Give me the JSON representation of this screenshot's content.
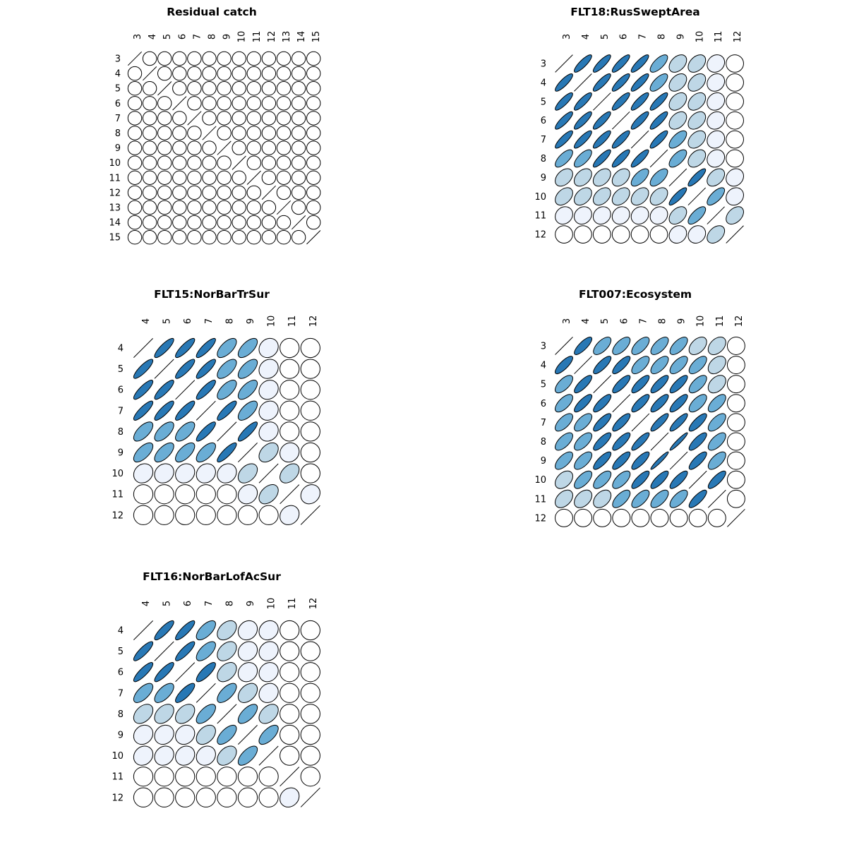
{
  "chart_data": [
    {
      "type": "heatmap",
      "subtype": "correlation-ellipse-matrix",
      "title": "Residual catch",
      "labels": [
        "3",
        "4",
        "5",
        "6",
        "7",
        "8",
        "9",
        "10",
        "11",
        "12",
        "13",
        "14",
        "15"
      ],
      "matrix": [
        [
          1,
          0,
          0,
          0,
          0,
          0,
          0,
          0,
          0,
          0,
          0,
          0,
          0
        ],
        [
          0,
          1,
          0,
          0,
          0,
          0,
          0,
          0,
          0,
          0,
          0,
          0,
          0
        ],
        [
          0,
          0,
          1,
          0,
          0,
          0,
          0,
          0,
          0,
          0,
          0,
          0,
          0
        ],
        [
          0,
          0,
          0,
          1,
          0,
          0,
          0,
          0,
          0,
          0,
          0,
          0,
          0
        ],
        [
          0,
          0,
          0,
          0,
          1,
          0,
          0,
          0,
          0,
          0,
          0,
          0,
          0
        ],
        [
          0,
          0,
          0,
          0,
          0,
          1,
          0,
          0,
          0,
          0,
          0,
          0,
          0
        ],
        [
          0,
          0,
          0,
          0,
          0,
          0,
          1,
          0,
          0,
          0,
          0,
          0,
          0
        ],
        [
          0,
          0,
          0,
          0,
          0,
          0,
          0,
          1,
          0,
          0,
          0,
          0,
          0
        ],
        [
          0,
          0,
          0,
          0,
          0,
          0,
          0,
          0,
          1,
          0,
          0,
          0,
          0
        ],
        [
          0,
          0,
          0,
          0,
          0,
          0,
          0,
          0,
          0,
          1,
          0,
          0,
          0
        ],
        [
          0,
          0,
          0,
          0,
          0,
          0,
          0,
          0,
          0,
          0,
          1,
          0,
          0
        ],
        [
          0,
          0,
          0,
          0,
          0,
          0,
          0,
          0,
          0,
          0,
          0,
          1,
          0
        ],
        [
          0,
          0,
          0,
          0,
          0,
          0,
          0,
          0,
          0,
          0,
          0,
          0,
          1
        ]
      ]
    },
    {
      "type": "heatmap",
      "subtype": "correlation-ellipse-matrix",
      "title": "FLT18:RusSweptArea",
      "labels": [
        "3",
        "4",
        "5",
        "6",
        "7",
        "8",
        "9",
        "10",
        "11",
        "12"
      ],
      "matrix": [
        [
          1,
          0.85,
          0.85,
          0.85,
          0.85,
          0.7,
          0.4,
          0.4,
          0.15,
          0
        ],
        [
          0.85,
          1,
          0.85,
          0.85,
          0.85,
          0.7,
          0.4,
          0.4,
          0.15,
          0
        ],
        [
          0.85,
          0.85,
          1,
          0.85,
          0.85,
          0.85,
          0.4,
          0.4,
          0.15,
          0
        ],
        [
          0.85,
          0.85,
          0.85,
          1,
          0.85,
          0.85,
          0.4,
          0.4,
          0.15,
          0
        ],
        [
          0.85,
          0.85,
          0.85,
          0.85,
          1,
          0.85,
          0.65,
          0.4,
          0.15,
          0
        ],
        [
          0.7,
          0.7,
          0.85,
          0.85,
          0.85,
          1,
          0.65,
          0.4,
          0.15,
          0
        ],
        [
          0.4,
          0.4,
          0.4,
          0.4,
          0.65,
          0.65,
          1,
          0.85,
          0.4,
          0.15
        ],
        [
          0.4,
          0.4,
          0.4,
          0.4,
          0.4,
          0.4,
          0.85,
          1,
          0.7,
          0.15
        ],
        [
          0.15,
          0.15,
          0.15,
          0.15,
          0.15,
          0.15,
          0.4,
          0.7,
          1,
          0.4
        ],
        [
          0,
          0,
          0,
          0,
          0,
          0,
          0.15,
          0.15,
          0.4,
          1
        ]
      ]
    },
    {
      "type": "heatmap",
      "subtype": "correlation-ellipse-matrix",
      "title": "FLT15:NorBarTrSur",
      "labels": [
        "4",
        "5",
        "6",
        "7",
        "8",
        "9",
        "10",
        "11",
        "12"
      ],
      "matrix": [
        [
          1,
          0.85,
          0.85,
          0.85,
          0.65,
          0.65,
          0.15,
          0,
          0
        ],
        [
          0.85,
          1,
          0.85,
          0.85,
          0.65,
          0.65,
          0.15,
          0,
          0
        ],
        [
          0.85,
          0.85,
          1,
          0.85,
          0.65,
          0.65,
          0.15,
          0,
          0
        ],
        [
          0.85,
          0.85,
          0.85,
          1,
          0.85,
          0.65,
          0.15,
          0,
          0
        ],
        [
          0.65,
          0.65,
          0.65,
          0.85,
          1,
          0.85,
          0.15,
          0,
          0
        ],
        [
          0.65,
          0.65,
          0.65,
          0.65,
          0.85,
          1,
          0.4,
          0.1,
          0
        ],
        [
          0.15,
          0.15,
          0.15,
          0.15,
          0.15,
          0.4,
          1,
          0.4,
          0
        ],
        [
          0,
          0,
          0,
          0,
          0,
          0.15,
          0.4,
          1,
          0.15
        ],
        [
          0,
          0,
          0,
          0,
          0,
          0,
          0,
          0.15,
          1
        ]
      ]
    },
    {
      "type": "heatmap",
      "subtype": "correlation-ellipse-matrix",
      "title": "FLT007:Ecosystem",
      "labels": [
        "3",
        "4",
        "5",
        "6",
        "7",
        "8",
        "9",
        "10",
        "11",
        "12"
      ],
      "matrix": [
        [
          1,
          0.8,
          0.65,
          0.65,
          0.65,
          0.65,
          0.65,
          0.45,
          0.4,
          0
        ],
        [
          0.8,
          1,
          0.8,
          0.8,
          0.65,
          0.65,
          0.65,
          0.65,
          0.4,
          0
        ],
        [
          0.65,
          0.8,
          1,
          0.8,
          0.8,
          0.8,
          0.8,
          0.65,
          0.4,
          0
        ],
        [
          0.65,
          0.8,
          0.8,
          1,
          0.8,
          0.8,
          0.8,
          0.65,
          0.65,
          0
        ],
        [
          0.65,
          0.65,
          0.8,
          0.8,
          1,
          0.85,
          0.85,
          0.8,
          0.65,
          0
        ],
        [
          0.65,
          0.65,
          0.8,
          0.8,
          0.85,
          1,
          0.95,
          0.8,
          0.65,
          0
        ],
        [
          0.65,
          0.65,
          0.8,
          0.8,
          0.8,
          0.95,
          1,
          0.8,
          0.65,
          0
        ],
        [
          0.4,
          0.65,
          0.65,
          0.65,
          0.8,
          0.8,
          0.8,
          1,
          0.8,
          0
        ],
        [
          0.4,
          0.4,
          0.4,
          0.65,
          0.65,
          0.65,
          0.65,
          0.8,
          1,
          0
        ],
        [
          0,
          0,
          0,
          0,
          0,
          0,
          0,
          0,
          0,
          1
        ]
      ]
    },
    {
      "type": "heatmap",
      "subtype": "correlation-ellipse-matrix",
      "title": "FLT16:NorBarLofAcSur",
      "labels": [
        "4",
        "5",
        "6",
        "7",
        "8",
        "9",
        "10",
        "11",
        "12"
      ],
      "matrix": [
        [
          1,
          0.85,
          0.85,
          0.65,
          0.4,
          0.15,
          0.15,
          0,
          0
        ],
        [
          0.85,
          1,
          0.85,
          0.65,
          0.4,
          0.15,
          0.15,
          0,
          0
        ],
        [
          0.85,
          0.85,
          1,
          0.8,
          0.4,
          0.15,
          0.15,
          0,
          0
        ],
        [
          0.65,
          0.65,
          0.8,
          1,
          0.65,
          0.4,
          0.15,
          0,
          0
        ],
        [
          0.4,
          0.4,
          0.4,
          0.65,
          1,
          0.65,
          0.4,
          0,
          0
        ],
        [
          0.15,
          0.15,
          0.15,
          0.4,
          0.65,
          1,
          0.65,
          0,
          0
        ],
        [
          0.15,
          0.15,
          0.15,
          0.15,
          0.4,
          0.65,
          1,
          0,
          0
        ],
        [
          0,
          0,
          0,
          0,
          0,
          0,
          0,
          1,
          0
        ],
        [
          0,
          0,
          0,
          0,
          0,
          0,
          0,
          0.15,
          1
        ]
      ]
    }
  ],
  "colors": {
    "strong": "#2878b5",
    "medium": "#6aadd5",
    "light": "#bed7e6",
    "faint": "#eef3fc",
    "none": "#ffffff",
    "outline": "#000000"
  }
}
